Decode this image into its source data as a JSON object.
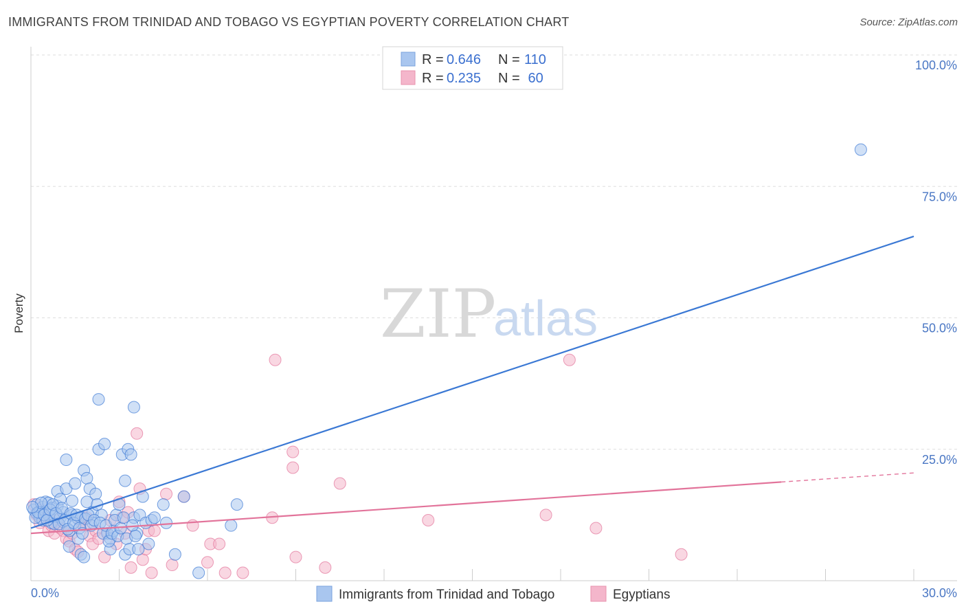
{
  "header": {
    "title": "IMMIGRANTS FROM TRINIDAD AND TOBAGO VS EGYPTIAN POVERTY CORRELATION CHART",
    "source": "Source: ZipAtlas.com"
  },
  "watermark": {
    "zip": "ZIP",
    "atlas": "atlas"
  },
  "colors": {
    "blue": "#3a78d4",
    "blue_fill": "#a9c6ef",
    "pink": "#e2739a",
    "pink_fill": "#f4b6cb",
    "grid": "#dddddd",
    "tick_label": "#4a77c4"
  },
  "legend": {
    "r_label": "R =",
    "n_label": "N =",
    "series": [
      {
        "name": "Immigrants from Trinidad and Tobago",
        "r": "0.646",
        "n": "110"
      },
      {
        "name": "Egyptians",
        "r": "0.235",
        "n": " 60"
      }
    ]
  },
  "chart_data": {
    "type": "scatter",
    "title": "IMMIGRANTS FROM TRINIDAD AND TOBAGO VS EGYPTIAN POVERTY CORRELATION CHART",
    "xlabel": "",
    "ylabel": "Poverty",
    "xlim": [
      0,
      30
    ],
    "ylim": [
      0,
      100
    ],
    "x_tick_labels": [
      "0.0%",
      "30.0%"
    ],
    "y_ticks": [
      25,
      50,
      75,
      100
    ],
    "y_tick_labels": [
      "25.0%",
      "50.0%",
      "75.0%",
      "100.0%"
    ],
    "grid": true,
    "legend_position": "top-center",
    "series": [
      {
        "name": "Immigrants from Trinidad and Tobago",
        "color": "#3a78d4",
        "trend": {
          "x": [
            0,
            30
          ],
          "y": [
            10.0,
            65.5
          ],
          "dashed_from": null
        },
        "points": [
          [
            0.1,
            13.5
          ],
          [
            0.2,
            12.8
          ],
          [
            0.2,
            14.5
          ],
          [
            0.3,
            13.0
          ],
          [
            0.3,
            12.0
          ],
          [
            0.4,
            14.0
          ],
          [
            0.4,
            11.5
          ],
          [
            0.5,
            13.2
          ],
          [
            0.5,
            15.0
          ],
          [
            0.6,
            12.5
          ],
          [
            0.6,
            14.8
          ],
          [
            0.7,
            11.0
          ],
          [
            0.7,
            13.8
          ],
          [
            0.8,
            12.2
          ],
          [
            0.8,
            10.8
          ],
          [
            0.9,
            14.2
          ],
          [
            0.9,
            17.0
          ],
          [
            1.0,
            12.0
          ],
          [
            1.0,
            15.5
          ],
          [
            1.1,
            11.2
          ],
          [
            1.1,
            13.0
          ],
          [
            1.2,
            17.5
          ],
          [
            1.2,
            23.0
          ],
          [
            1.3,
            9.5
          ],
          [
            1.3,
            6.5
          ],
          [
            1.4,
            12.5
          ],
          [
            1.4,
            15.2
          ],
          [
            1.5,
            10.5
          ],
          [
            1.5,
            18.5
          ],
          [
            1.6,
            11.8
          ],
          [
            1.6,
            8.0
          ],
          [
            1.7,
            12.0
          ],
          [
            1.7,
            5.0
          ],
          [
            1.8,
            21.0
          ],
          [
            1.8,
            4.5
          ],
          [
            1.9,
            19.5
          ],
          [
            1.9,
            15.0
          ],
          [
            2.0,
            17.5
          ],
          [
            2.1,
            13.0
          ],
          [
            2.1,
            11.0
          ],
          [
            2.2,
            16.5
          ],
          [
            2.3,
            25.0
          ],
          [
            2.3,
            34.5
          ],
          [
            2.4,
            12.5
          ],
          [
            2.5,
            26.0
          ],
          [
            2.6,
            9.0
          ],
          [
            2.7,
            8.0
          ],
          [
            2.7,
            6.0
          ],
          [
            2.8,
            9.5
          ],
          [
            2.9,
            12.5
          ],
          [
            3.0,
            14.5
          ],
          [
            3.1,
            24.0
          ],
          [
            3.2,
            19.0
          ],
          [
            3.2,
            5.0
          ],
          [
            3.3,
            25.0
          ],
          [
            3.4,
            24.0
          ],
          [
            3.5,
            33.0
          ],
          [
            3.5,
            12.0
          ],
          [
            3.6,
            9.0
          ],
          [
            3.7,
            12.5
          ],
          [
            3.8,
            16.0
          ],
          [
            3.9,
            11.0
          ],
          [
            4.0,
            7.0
          ],
          [
            4.1,
            11.5
          ],
          [
            4.2,
            12.0
          ],
          [
            4.5,
            14.5
          ],
          [
            4.6,
            11.0
          ],
          [
            4.9,
            5.0
          ],
          [
            5.2,
            16.0
          ],
          [
            5.7,
            1.5
          ],
          [
            6.8,
            10.5
          ],
          [
            7.0,
            14.5
          ],
          [
            0.15,
            12.0
          ],
          [
            0.25,
            13.0
          ],
          [
            0.35,
            14.8
          ],
          [
            0.45,
            12.5
          ],
          [
            0.55,
            11.5
          ],
          [
            0.65,
            13.5
          ],
          [
            0.75,
            14.5
          ],
          [
            0.85,
            12.8
          ],
          [
            0.95,
            10.8
          ],
          [
            1.05,
            13.8
          ],
          [
            1.15,
            11.5
          ],
          [
            1.25,
            9.8
          ],
          [
            1.35,
            12.8
          ],
          [
            1.45,
            11.0
          ],
          [
            1.55,
            12.5
          ],
          [
            1.65,
            10.0
          ],
          [
            1.75,
            9.0
          ],
          [
            1.85,
            11.8
          ],
          [
            1.95,
            12.5
          ],
          [
            2.05,
            10.5
          ],
          [
            2.15,
            11.5
          ],
          [
            2.25,
            14.5
          ],
          [
            2.35,
            11.0
          ],
          [
            2.45,
            9.0
          ],
          [
            2.55,
            10.5
          ],
          [
            2.65,
            7.5
          ],
          [
            2.75,
            9.0
          ],
          [
            2.85,
            11.5
          ],
          [
            2.95,
            8.5
          ],
          [
            3.05,
            10.0
          ],
          [
            3.15,
            12.0
          ],
          [
            3.25,
            8.0
          ],
          [
            3.35,
            6.0
          ],
          [
            3.45,
            10.5
          ],
          [
            3.55,
            8.5
          ],
          [
            3.65,
            6.0
          ],
          [
            28.2,
            82.0
          ],
          [
            0.05,
            14.0
          ]
        ]
      },
      {
        "name": "Egyptians",
        "color": "#e2739a",
        "trend": {
          "x": [
            0,
            30
          ],
          "y": [
            9.0,
            20.5
          ],
          "dashed_from": 25.5
        },
        "points": [
          [
            0.1,
            14.5
          ],
          [
            0.2,
            12.5
          ],
          [
            0.3,
            11.0
          ],
          [
            0.4,
            13.5
          ],
          [
            0.5,
            12.0
          ],
          [
            0.6,
            9.5
          ],
          [
            0.7,
            10.5
          ],
          [
            0.8,
            9.0
          ],
          [
            0.9,
            11.5
          ],
          [
            1.0,
            10.0
          ],
          [
            1.1,
            9.5
          ],
          [
            1.2,
            8.0
          ],
          [
            1.3,
            7.5
          ],
          [
            1.4,
            9.0
          ],
          [
            1.5,
            6.0
          ],
          [
            1.6,
            5.5
          ],
          [
            1.7,
            11.0
          ],
          [
            1.8,
            10.5
          ],
          [
            1.9,
            12.0
          ],
          [
            2.0,
            8.5
          ],
          [
            2.1,
            7.0
          ],
          [
            2.2,
            9.5
          ],
          [
            2.3,
            8.0
          ],
          [
            2.5,
            4.5
          ],
          [
            2.6,
            9.0
          ],
          [
            2.7,
            11.5
          ],
          [
            2.9,
            7.0
          ],
          [
            3.0,
            15.0
          ],
          [
            3.1,
            12.0
          ],
          [
            3.2,
            9.0
          ],
          [
            3.3,
            13.0
          ],
          [
            3.4,
            2.5
          ],
          [
            3.6,
            28.0
          ],
          [
            3.7,
            17.5
          ],
          [
            3.8,
            4.0
          ],
          [
            3.9,
            6.0
          ],
          [
            4.0,
            9.5
          ],
          [
            4.1,
            1.5
          ],
          [
            4.2,
            9.5
          ],
          [
            4.6,
            16.5
          ],
          [
            4.8,
            3.0
          ],
          [
            5.2,
            16.0
          ],
          [
            5.5,
            10.5
          ],
          [
            6.0,
            3.5
          ],
          [
            6.1,
            7.0
          ],
          [
            6.4,
            7.0
          ],
          [
            6.6,
            1.5
          ],
          [
            7.2,
            1.5
          ],
          [
            8.2,
            12.0
          ],
          [
            8.3,
            42.0
          ],
          [
            8.9,
            21.5
          ],
          [
            8.9,
            24.5
          ],
          [
            9.0,
            4.5
          ],
          [
            10.0,
            2.5
          ],
          [
            10.5,
            18.5
          ],
          [
            13.5,
            11.5
          ],
          [
            17.5,
            12.5
          ],
          [
            18.3,
            42.0
          ],
          [
            19.2,
            10.0
          ],
          [
            22.1,
            5.0
          ]
        ]
      }
    ]
  }
}
